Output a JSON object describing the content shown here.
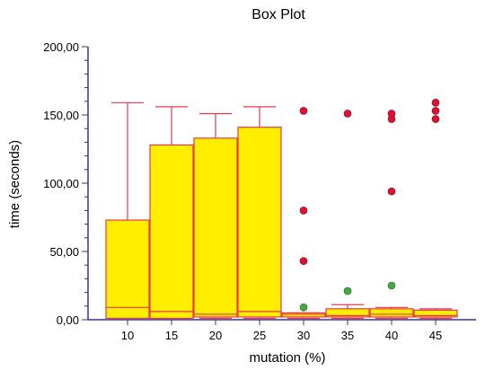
{
  "chart_data": {
    "type": "box",
    "title": "Box Plot",
    "xlabel": "mutation (%)",
    "ylabel": "time (seconds)",
    "ylim": [
      0,
      200
    ],
    "ytick_labels": [
      "0,00",
      "50,00",
      "100,00",
      "150,00",
      "200,00"
    ],
    "ytick_values": [
      0,
      50,
      100,
      150,
      200
    ],
    "categories": [
      "10",
      "15",
      "20",
      "25",
      "30",
      "35",
      "40",
      "45"
    ],
    "boxes": [
      {
        "category": "10",
        "whisker_low": 1,
        "q1": 1,
        "median": 9,
        "q3": 73,
        "whisker_high": 159,
        "outliers": [],
        "extremes": []
      },
      {
        "category": "15",
        "whisker_low": 1,
        "q1": 1,
        "median": 6,
        "q3": 128,
        "whisker_high": 156,
        "outliers": [],
        "extremes": []
      },
      {
        "category": "20",
        "whisker_low": 1,
        "q1": 2,
        "median": 4,
        "q3": 133,
        "whisker_high": 151,
        "outliers": [],
        "extremes": []
      },
      {
        "category": "25",
        "whisker_low": 1,
        "q1": 2,
        "median": 6,
        "q3": 141,
        "whisker_high": 156,
        "outliers": [],
        "extremes": []
      },
      {
        "category": "30",
        "whisker_low": 1,
        "q1": 2,
        "median": 4,
        "q3": 5,
        "whisker_high": 5,
        "outliers": [
          9
        ],
        "extremes": [
          43,
          80,
          153
        ]
      },
      {
        "category": "35",
        "whisker_low": 1,
        "q1": 2,
        "median": 3,
        "q3": 8,
        "whisker_high": 11,
        "outliers": [
          21
        ],
        "extremes": [
          151
        ]
      },
      {
        "category": "40",
        "whisker_low": 1,
        "q1": 2,
        "median": 4,
        "q3": 8,
        "whisker_high": 9,
        "outliers": [
          25
        ],
        "extremes": [
          94,
          147,
          151
        ]
      },
      {
        "category": "45",
        "whisker_low": 1,
        "q1": 2,
        "median": 3,
        "q3": 7,
        "whisker_high": 8,
        "outliers": [],
        "extremes": [
          147,
          153,
          159
        ]
      }
    ],
    "grid": false,
    "legend": "none"
  },
  "colors": {
    "box_fill": "#ffee00",
    "box_stroke": "#e8384f",
    "axis": "#333399",
    "outlier": "#44aa44",
    "extreme": "#dd1133"
  }
}
